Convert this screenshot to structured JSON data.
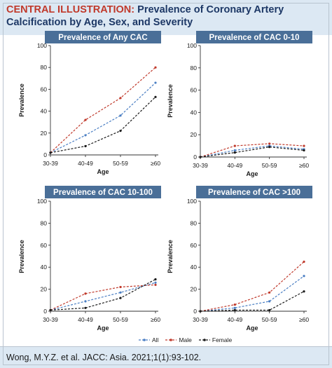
{
  "header": {
    "label": "CENTRAL ILLUSTRATION:",
    "title": "Prevalence of Coronary Artery Calcification by Age, Sex, and Severity"
  },
  "footer": {
    "citation": "Wong, M.Y.Z. et al. JACC: Asia. 2021;1(1):93-102."
  },
  "legend": [
    {
      "name": "All",
      "color": "#4a7ec3"
    },
    {
      "name": "Male",
      "color": "#c0392b"
    },
    {
      "name": "Female",
      "color": "#1a1a1a"
    }
  ],
  "chart_data": [
    {
      "type": "line",
      "title": "Prevalence of Any CAC",
      "xlabel": "Age",
      "ylabel": "Prevalence",
      "categories": [
        "30-39",
        "40-49",
        "50-59",
        "≥60"
      ],
      "ylim": [
        0,
        100
      ],
      "yticks": [
        0,
        20,
        40,
        60,
        80,
        100
      ],
      "series": [
        {
          "name": "All",
          "values": [
            2,
            18,
            36,
            66
          ]
        },
        {
          "name": "Male",
          "values": [
            2,
            32,
            52,
            80
          ]
        },
        {
          "name": "Female",
          "values": [
            2,
            8,
            22,
            53
          ]
        }
      ]
    },
    {
      "type": "line",
      "title": "Prevalence of CAC 0-10",
      "xlabel": "Age",
      "ylabel": "Prevalence",
      "categories": [
        "30-39",
        "40-49",
        "50-59",
        "≥60"
      ],
      "ylim": [
        0,
        100
      ],
      "yticks": [
        0,
        20,
        40,
        60,
        80,
        100
      ],
      "series": [
        {
          "name": "All",
          "values": [
            0,
            6,
            10,
            7
          ]
        },
        {
          "name": "Male",
          "values": [
            0,
            10,
            12,
            10
          ]
        },
        {
          "name": "Female",
          "values": [
            0,
            4,
            9,
            6
          ]
        }
      ]
    },
    {
      "type": "line",
      "title": "Prevalence of CAC 10-100",
      "xlabel": "Age",
      "ylabel": "Prevalence",
      "categories": [
        "30-39",
        "40-49",
        "50-59",
        "≥60"
      ],
      "ylim": [
        0,
        100
      ],
      "yticks": [
        0,
        20,
        40,
        60,
        80,
        100
      ],
      "series": [
        {
          "name": "All",
          "values": [
            1,
            9,
            17,
            26
          ]
        },
        {
          "name": "Male",
          "values": [
            1,
            16,
            22,
            24
          ]
        },
        {
          "name": "Female",
          "values": [
            1,
            3,
            12,
            29
          ]
        }
      ]
    },
    {
      "type": "line",
      "title": "Prevalence of CAC >100",
      "xlabel": "Age",
      "ylabel": "Prevalence",
      "categories": [
        "30-39",
        "40-49",
        "50-59",
        "≥60"
      ],
      "ylim": [
        0,
        100
      ],
      "yticks": [
        0,
        20,
        40,
        60,
        80,
        100
      ],
      "series": [
        {
          "name": "All",
          "values": [
            0,
            3,
            9,
            32
          ]
        },
        {
          "name": "Male",
          "values": [
            0,
            6,
            17,
            45
          ]
        },
        {
          "name": "Female",
          "values": [
            0,
            1,
            1,
            18
          ]
        }
      ]
    }
  ]
}
